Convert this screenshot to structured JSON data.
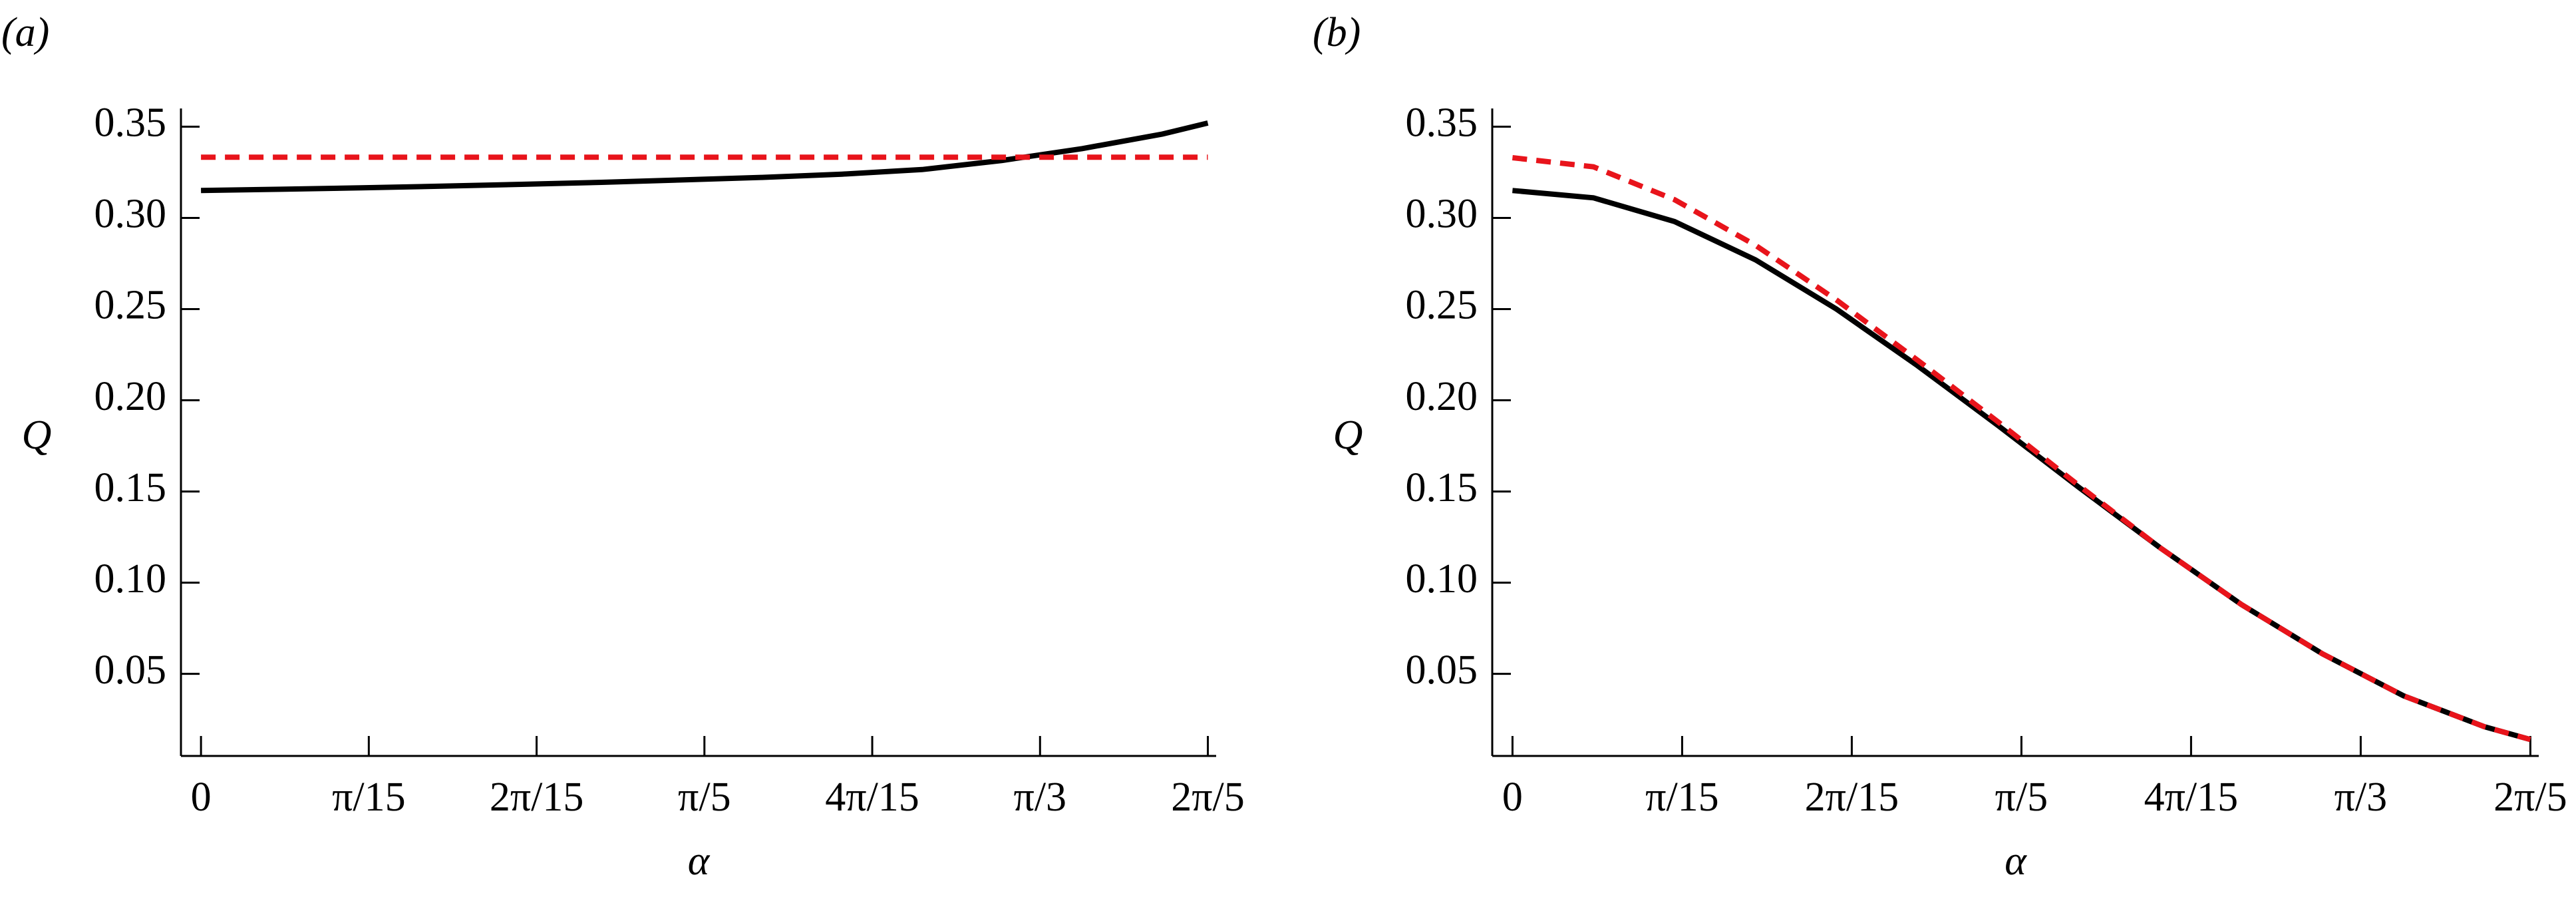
{
  "chart_data": [
    {
      "type": "line",
      "title": "(a)",
      "xlabel": "α",
      "ylabel": "Q",
      "x": [
        0,
        0.1,
        0.2,
        0.3,
        0.4,
        0.5,
        0.6,
        0.7,
        0.8,
        0.9,
        1.0,
        1.1,
        1.2,
        1.25664
      ],
      "series": [
        {
          "color": "#000000",
          "style": "solid",
          "values": [
            0.315,
            0.3157,
            0.3165,
            0.3174,
            0.3184,
            0.3195,
            0.3208,
            0.3222,
            0.324,
            0.3265,
            0.3315,
            0.338,
            0.346,
            0.352
          ]
        },
        {
          "color": "#e8141b",
          "style": "dashed",
          "values": [
            0.3333,
            0.3333,
            0.3333,
            0.3333,
            0.3333,
            0.3333,
            0.3333,
            0.3333,
            0.3333,
            0.3333,
            0.3333,
            0.3333,
            0.3333,
            0.3333
          ]
        }
      ],
      "xlim": [
        -0.025,
        1.267
      ],
      "ylim": [
        0.005,
        0.36
      ],
      "xticks": [
        0,
        {
          "value": 0.20944,
          "label": "π/15"
        },
        {
          "value": 0.41888,
          "label": "2π/15"
        },
        {
          "value": 0.62832,
          "label": "π/5"
        },
        {
          "value": 0.83776,
          "label": "4π/15"
        },
        {
          "value": 1.0472,
          "label": "π/3"
        },
        {
          "value": 1.25664,
          "label": "2π/5"
        }
      ],
      "yticks": [
        0.05,
        {
          "value": 0.1,
          "label": "0.10"
        },
        0.15,
        {
          "value": 0.2,
          "label": "0.20"
        },
        0.25,
        {
          "value": 0.3,
          "label": "0.30"
        },
        0.35
      ]
    },
    {
      "type": "line",
      "title": "(b)",
      "xlabel": "α",
      "ylabel": "Q",
      "x": [
        0,
        0.1,
        0.2,
        0.3,
        0.4,
        0.5,
        0.6,
        0.7,
        0.8,
        0.9,
        1.0,
        1.1,
        1.2,
        1.25664
      ],
      "series": [
        {
          "color": "#000000",
          "style": "solid",
          "values": [
            0.315,
            0.311,
            0.298,
            0.277,
            0.25,
            0.219,
            0.186,
            0.152,
            0.119,
            0.088,
            0.061,
            0.038,
            0.021,
            0.014
          ]
        },
        {
          "color": "#e8141b",
          "style": "dashed",
          "values": [
            0.333,
            0.328,
            0.31,
            0.285,
            0.255,
            0.222,
            0.188,
            0.153,
            0.119,
            0.088,
            0.061,
            0.038,
            0.021,
            0.014
          ]
        }
      ],
      "xlim": [
        -0.025,
        1.267
      ],
      "ylim": [
        0.005,
        0.36
      ],
      "xticks": [
        0,
        {
          "value": 0.20944,
          "label": "π/15"
        },
        {
          "value": 0.41888,
          "label": "2π/15"
        },
        {
          "value": 0.62832,
          "label": "π/5"
        },
        {
          "value": 0.83776,
          "label": "4π/15"
        },
        {
          "value": 1.0472,
          "label": "π/3"
        },
        {
          "value": 1.25664,
          "label": "2π/5"
        }
      ],
      "yticks": [
        0.05,
        {
          "value": 0.1,
          "label": "0.10"
        },
        0.15,
        {
          "value": 0.2,
          "label": "0.20"
        },
        0.25,
        {
          "value": 0.3,
          "label": "0.30"
        },
        0.35
      ]
    }
  ]
}
